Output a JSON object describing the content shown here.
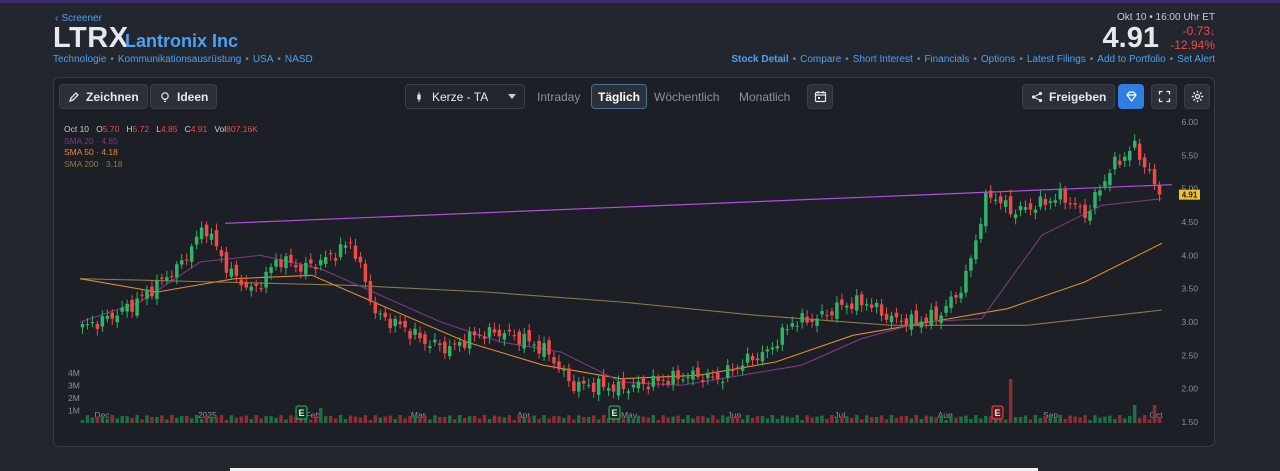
{
  "header": {
    "back_label": "Screener",
    "ticker": "LTRX",
    "company": "Lantronix Inc",
    "tags": [
      "Technologie",
      "Kommunikationsausrüstung",
      "USA",
      "NASD"
    ],
    "quote_time": "Okt 10 • 16:00 Uhr ET",
    "price": "4.91",
    "change_abs": "-0.73",
    "change_pct": "-12.94%",
    "links": [
      "Stock Detail",
      "Compare",
      "Short Interest",
      "Financials",
      "Options",
      "Latest Filings",
      "Add to Portfolio",
      "Set Alert"
    ]
  },
  "toolbar": {
    "draw_label": "Zeichnen",
    "ideas_label": "Ideen",
    "chart_type_value": "Kerze - TA",
    "tabs": [
      "Intraday",
      "Täglich",
      "Wöchentlich",
      "Monatlich"
    ],
    "active_tab": "Täglich",
    "share_label": "Freigeben"
  },
  "legend": {
    "date": "Oct 10",
    "o_label": "O",
    "o_value": "5.70",
    "h_label": "H",
    "h_value": "5.72",
    "l_label": "L",
    "l_value": "4.85",
    "c_label": "C",
    "c_value": "4.91",
    "vol_label": "Vol",
    "vol_value": "807.16K",
    "sma20": "SMA 20 · 4.85",
    "sma50": "SMA 50 · 4.18",
    "sma200": "SMA 200 · 3.18"
  },
  "colors": {
    "up": "#2fb466",
    "down": "#ef4a4a",
    "sma20": "#7b3a80",
    "sma50": "#e38a2e",
    "sma200": "#8d7a4a",
    "trendline": "#b84be0",
    "accent": "#4ea1f0",
    "price_tag": "#f2c12e"
  },
  "chart_data": {
    "type": "candlestick",
    "y_ticks": [
      "6.00",
      "5.50",
      "5.00",
      "4.50",
      "4.00",
      "3.50",
      "3.00",
      "2.50",
      "2.00",
      "1.50"
    ],
    "ylim": [
      1.5,
      6.0
    ],
    "x_labels": [
      "Dec",
      "2025",
      "Feb",
      "Mar",
      "Apr",
      "May",
      "Jun",
      "Jul",
      "Aug",
      "Sep",
      "Oct"
    ],
    "volume_ticks": [
      "4M",
      "3M",
      "2M",
      "1M"
    ],
    "last_price_tag": "4.91",
    "earnings_markers": [
      {
        "label": "E",
        "month": "Feb",
        "type": "positive"
      },
      {
        "label": "E",
        "month": "May",
        "type": "positive"
      },
      {
        "label": "E",
        "month": "Sep",
        "type": "negative"
      }
    ],
    "close_path": [
      [
        "Nov 25",
        2.92
      ],
      [
        "Dec",
        3.05
      ],
      [
        "Dec 10",
        3.25
      ],
      [
        "Dec 18",
        3.55
      ],
      [
        "Dec 27",
        3.85
      ],
      [
        "2025",
        4.45
      ],
      [
        "Jan 8",
        3.75
      ],
      [
        "Jan 15",
        3.45
      ],
      [
        "Jan 22",
        3.95
      ],
      [
        "Jan 29",
        3.8
      ],
      [
        "Feb",
        3.95
      ],
      [
        "Feb 4",
        4.2
      ],
      [
        "Feb 7",
        3.1
      ],
      [
        "Feb 14",
        2.95
      ],
      [
        "Feb 21",
        2.7
      ],
      [
        "Mar",
        2.6
      ],
      [
        "Mar 10",
        2.8
      ],
      [
        "Mar 20",
        2.85
      ],
      [
        "Mar 28",
        2.75
      ],
      [
        "Apr",
        2.55
      ],
      [
        "Apr 7",
        2.05
      ],
      [
        "Apr 15",
        2.05
      ],
      [
        "Apr 25",
        2.0
      ],
      [
        "May",
        2.08
      ],
      [
        "May 12",
        2.15
      ],
      [
        "May 22",
        2.2
      ],
      [
        "Jun",
        2.15
      ],
      [
        "Jun 10",
        2.4
      ],
      [
        "Jun 20",
        2.55
      ],
      [
        "Jul",
        3.0
      ],
      [
        "Jul 10",
        3.05
      ],
      [
        "Jul 20",
        3.25
      ],
      [
        "Jul 28",
        3.3
      ],
      [
        "Aug",
        3.05
      ],
      [
        "Aug 10",
        3.0
      ],
      [
        "Aug 18",
        3.1
      ],
      [
        "Aug 25",
        3.55
      ],
      [
        "Sep",
        4.95
      ],
      [
        "Sep 8",
        4.65
      ],
      [
        "Sep 16",
        4.75
      ],
      [
        "Sep 24",
        4.9
      ],
      [
        "Oct",
        4.6
      ],
      [
        "Oct 6",
        5.3
      ],
      [
        "Oct 9",
        5.64
      ],
      [
        "Oct 10",
        4.91
      ]
    ],
    "sma20": [
      3.0,
      3.3,
      3.9,
      4.0,
      3.8,
      3.4,
      3.0,
      2.7,
      2.55,
      2.1,
      2.05,
      2.2,
      2.35,
      2.75,
      3.0,
      3.05,
      4.3,
      4.75,
      4.85
    ],
    "sma50": [
      3.65,
      3.45,
      3.65,
      3.7,
      3.2,
      2.7,
      2.35,
      2.15,
      2.2,
      2.4,
      2.8,
      3.0,
      3.2,
      3.6,
      4.18
    ],
    "sma200": [
      3.65,
      3.6,
      3.55,
      3.45,
      3.3,
      3.1,
      2.95,
      2.95,
      3.18
    ]
  }
}
